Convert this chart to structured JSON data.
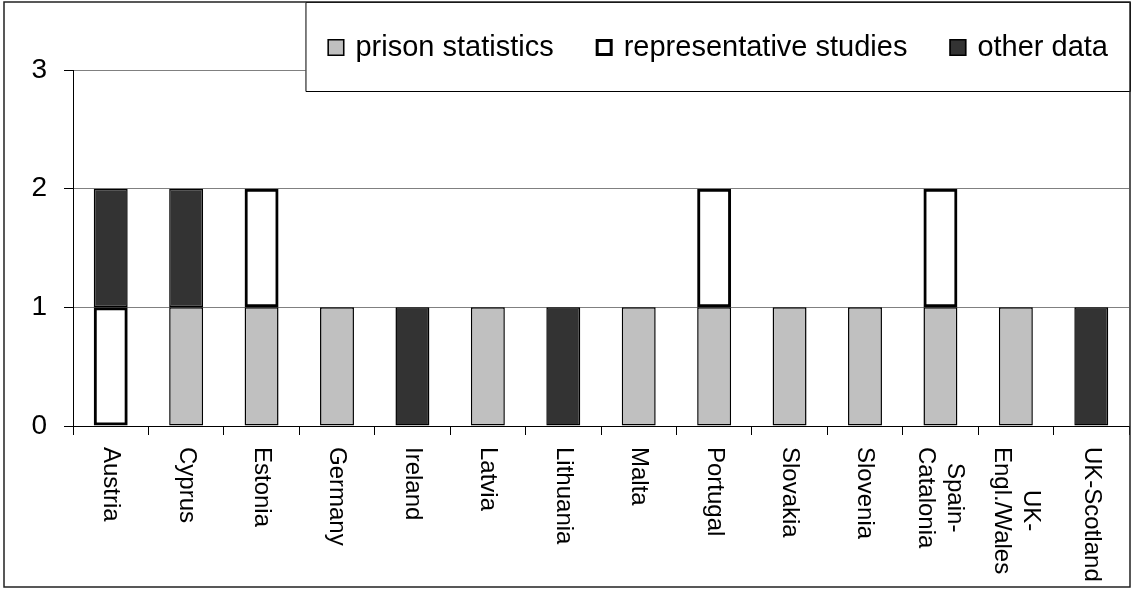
{
  "chart_data": {
    "type": "bar",
    "stacked": true,
    "categories": [
      "Austria",
      "Cyprus",
      "Estonia",
      "Germany",
      "Ireland",
      "Latvia",
      "Lithuania",
      "Malta",
      "Portugal",
      "Slovakia",
      "Slovenia",
      "Spain-Catalonia",
      "UK-Engl./Wales",
      "UK-Scotland"
    ],
    "series": [
      {
        "name": "prison statistics",
        "color": "#c0c0c0",
        "values": [
          0,
          1,
          1,
          1,
          0,
          1,
          0,
          1,
          1,
          1,
          1,
          1,
          1,
          0
        ]
      },
      {
        "name": "representative studies",
        "color": "#000000",
        "values": [
          1,
          0,
          1,
          0,
          0,
          0,
          0,
          0,
          1,
          0,
          0,
          1,
          0,
          0
        ]
      },
      {
        "name": "other data",
        "color": "#333333",
        "values": [
          1,
          1,
          0,
          0,
          1,
          0,
          1,
          0,
          0,
          0,
          0,
          0,
          0,
          1
        ]
      }
    ],
    "ylim": [
      0,
      3
    ],
    "yticks": [
      0,
      1,
      2,
      3
    ],
    "grid": "y",
    "legend": "top right"
  }
}
